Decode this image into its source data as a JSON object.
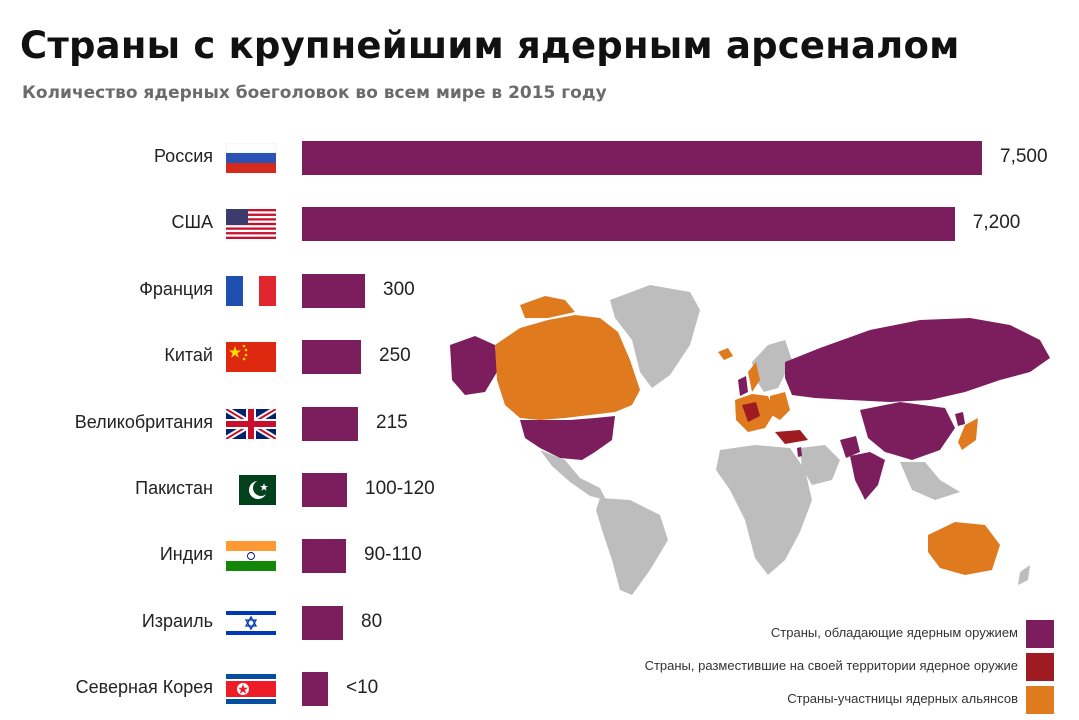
{
  "title": "Страны с крупнейшим ядерным арсеналом",
  "subtitle": "Количество ядерных боеголовок во всем мире в 2015 году",
  "colors": {
    "bar": "#7c1d5e",
    "nuclear_states": "#7c1d5e",
    "hosting_states": "#9e1b22",
    "alliance_members": "#e07a1f",
    "other_land": "#bdbdbd"
  },
  "chart_data": {
    "type": "bar",
    "orientation": "horizontal",
    "categories": [
      "Россия",
      "США",
      "Франция",
      "Китай",
      "Великобритания",
      "Пакистан",
      "Индия",
      "Израиль",
      "Северная Корея"
    ],
    "values": [
      7500,
      7200,
      300,
      250,
      215,
      110,
      100,
      80,
      10
    ],
    "value_labels": [
      "7,500",
      "7,200",
      "300",
      "250",
      "215",
      "100-120",
      "90-110",
      "80",
      "<10"
    ],
    "ranges": [
      null,
      null,
      null,
      null,
      null,
      [
        100,
        120
      ],
      [
        90,
        110
      ],
      null,
      [
        0,
        10
      ]
    ],
    "flags": [
      "russia-flag-icon",
      "usa-flag-icon",
      "france-flag-icon",
      "china-flag-icon",
      "uk-flag-icon",
      "pakistan-flag-icon",
      "india-flag-icon",
      "israel-flag-icon",
      "north-korea-flag-icon"
    ],
    "xlim": [
      0,
      7500
    ],
    "grid": false,
    "legend_position": "bottom-right"
  },
  "legend": [
    {
      "label": "Страны, обладающие ядерным оружием",
      "color": "#7c1d5e"
    },
    {
      "label": "Страны, разместившие на своей территории ядерное оружие",
      "color": "#9e1b22"
    },
    {
      "label": "Страны-участницы ядерных альянсов",
      "color": "#e07a1f"
    }
  ]
}
